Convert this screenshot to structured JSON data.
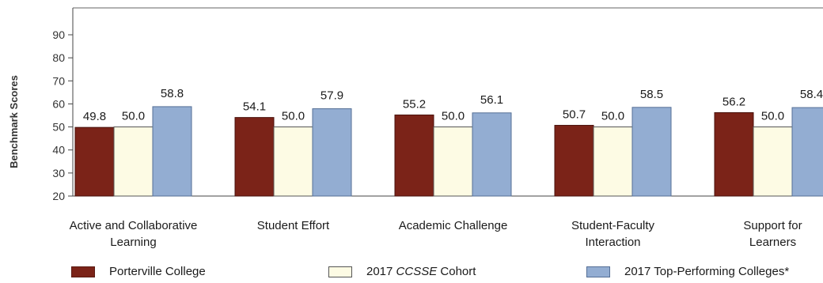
{
  "chart_data": {
    "type": "bar",
    "ylabel": "Benchmark Scores",
    "ylim": [
      20,
      90
    ],
    "yticks": [
      20,
      30,
      40,
      50,
      60,
      70,
      80,
      90
    ],
    "categories": [
      [
        "Active and Collaborative",
        "Learning"
      ],
      [
        "Student Effort"
      ],
      [
        "Academic Challenge"
      ],
      [
        "Student-Faculty",
        "Interaction"
      ],
      [
        "Support for",
        "Learners"
      ]
    ],
    "series": [
      {
        "name": "Porterville College",
        "color": "#7b2318",
        "values": [
          49.8,
          54.1,
          55.2,
          50.7,
          56.2
        ],
        "labels": [
          "49.8",
          "54.1",
          "55.2",
          "50.7",
          "56.2"
        ]
      },
      {
        "name_parts": [
          "2017 ",
          "CCSSE",
          " Cohort"
        ],
        "color": "#fdfbe4",
        "values": [
          50.0,
          50.0,
          50.0,
          50.0,
          50.0
        ],
        "labels": [
          "50.0",
          "50.0",
          "50.0",
          "50.0",
          "50.0"
        ]
      },
      {
        "name": "2017 Top-Performing Colleges*",
        "color": "#93add2",
        "values": [
          58.8,
          57.9,
          56.1,
          58.5,
          58.4
        ],
        "labels": [
          "58.8",
          "57.9",
          "56.1",
          "58.5",
          "58.4"
        ]
      }
    ],
    "grid": false,
    "legend_position": "bottom"
  }
}
